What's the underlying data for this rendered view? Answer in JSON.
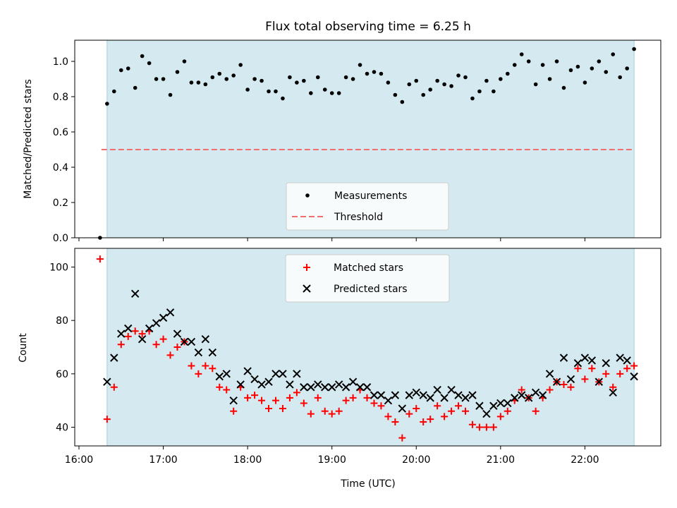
{
  "title": "Flux total observing time = 6.25 h",
  "chart_data": [
    {
      "type": "scatter",
      "ylabel": "Matched/Predicted stars",
      "xlim": [
        "15:57",
        "22:54"
      ],
      "ylim": [
        0,
        1.12
      ],
      "x_ticks": [
        "16:00",
        "17:00",
        "18:00",
        "19:00",
        "20:00",
        "21:00",
        "22:00"
      ],
      "y_ticks": [
        "0.0",
        "0.2",
        "0.4",
        "0.6",
        "0.8",
        "1.0"
      ],
      "observing_window": [
        "16:20",
        "22:35"
      ],
      "threshold": 0.5,
      "legend": {
        "position": "lower center",
        "entries": [
          "Measurements",
          "Threshold"
        ]
      },
      "series": [
        {
          "name": "Measurements",
          "x": [
            "16:15",
            "16:20",
            "16:25",
            "16:30",
            "16:35",
            "16:40",
            "16:45",
            "16:50",
            "16:55",
            "17:00",
            "17:05",
            "17:10",
            "17:15",
            "17:20",
            "17:25",
            "17:30",
            "17:35",
            "17:40",
            "17:45",
            "17:50",
            "17:55",
            "18:00",
            "18:05",
            "18:10",
            "18:15",
            "18:20",
            "18:25",
            "18:30",
            "18:35",
            "18:40",
            "18:45",
            "18:50",
            "18:55",
            "19:00",
            "19:05",
            "19:10",
            "19:15",
            "19:20",
            "19:25",
            "19:30",
            "19:35",
            "19:40",
            "19:45",
            "19:50",
            "19:55",
            "20:00",
            "20:05",
            "20:10",
            "20:15",
            "20:20",
            "20:25",
            "20:30",
            "20:35",
            "20:40",
            "20:45",
            "20:50",
            "20:55",
            "21:00",
            "21:05",
            "21:10",
            "21:15",
            "21:20",
            "21:25",
            "21:30",
            "21:35",
            "21:40",
            "21:45",
            "21:50",
            "21:55",
            "22:00",
            "22:05",
            "22:10",
            "22:15",
            "22:20",
            "22:25",
            "22:30",
            "22:35"
          ],
          "values": [
            0.0,
            0.76,
            0.83,
            0.95,
            0.96,
            0.85,
            1.03,
            0.99,
            0.9,
            0.9,
            0.81,
            0.94,
            1.0,
            0.88,
            0.88,
            0.87,
            0.91,
            0.93,
            0.9,
            0.92,
            0.98,
            0.84,
            0.9,
            0.89,
            0.83,
            0.83,
            0.79,
            0.91,
            0.88,
            0.89,
            0.82,
            0.91,
            0.84,
            0.82,
            0.82,
            0.91,
            0.9,
            0.98,
            0.93,
            0.94,
            0.93,
            0.88,
            0.81,
            0.77,
            0.87,
            0.89,
            0.81,
            0.84,
            0.89,
            0.87,
            0.86,
            0.92,
            0.91,
            0.79,
            0.83,
            0.89,
            0.83,
            0.9,
            0.93,
            0.98,
            1.04,
            1.0,
            0.87,
            0.98,
            0.9,
            1.0,
            0.85,
            0.95,
            0.97,
            0.88,
            0.96,
            1.0,
            0.94,
            1.04,
            0.91,
            0.96,
            1.07
          ],
          "color": "#000000"
        }
      ],
      "threshold_color": "#f07070",
      "band_color": "#d4eaf0"
    },
    {
      "type": "scatter",
      "xlabel": "Time (UTC)",
      "ylabel": "Count",
      "xlim": [
        "15:57",
        "22:54"
      ],
      "ylim": [
        33,
        107
      ],
      "x_ticks": [
        "16:00",
        "17:00",
        "18:00",
        "19:00",
        "20:00",
        "21:00",
        "22:00"
      ],
      "y_ticks": [
        "40",
        "60",
        "80",
        "100"
      ],
      "observing_window": [
        "16:20",
        "22:35"
      ],
      "legend": {
        "position": "upper center",
        "entries": [
          "Matched stars",
          "Predicted stars"
        ]
      },
      "x": [
        "16:15",
        "16:20",
        "16:25",
        "16:30",
        "16:35",
        "16:40",
        "16:45",
        "16:50",
        "16:55",
        "17:00",
        "17:05",
        "17:10",
        "17:15",
        "17:20",
        "17:25",
        "17:30",
        "17:35",
        "17:40",
        "17:45",
        "17:50",
        "17:55",
        "18:00",
        "18:05",
        "18:10",
        "18:15",
        "18:20",
        "18:25",
        "18:30",
        "18:35",
        "18:40",
        "18:45",
        "18:50",
        "18:55",
        "19:00",
        "19:05",
        "19:10",
        "19:15",
        "19:20",
        "19:25",
        "19:30",
        "19:35",
        "19:40",
        "19:45",
        "19:50",
        "19:55",
        "20:00",
        "20:05",
        "20:10",
        "20:15",
        "20:20",
        "20:25",
        "20:30",
        "20:35",
        "20:40",
        "20:45",
        "20:50",
        "20:55",
        "21:00",
        "21:05",
        "21:10",
        "21:15",
        "21:20",
        "21:25",
        "21:30",
        "21:35",
        "21:40",
        "21:45",
        "21:50",
        "21:55",
        "22:00",
        "22:05",
        "22:10",
        "22:15",
        "22:20",
        "22:25",
        "22:30",
        "22:35"
      ],
      "series": [
        {
          "name": "Matched stars",
          "marker": "plus",
          "color": "#ff0000",
          "values": [
            103,
            43,
            55,
            71,
            74,
            76,
            75,
            76,
            71,
            73,
            67,
            70,
            72,
            63,
            60,
            63,
            62,
            55,
            54,
            46,
            55,
            51,
            52,
            50,
            47,
            50,
            47,
            51,
            53,
            49,
            45,
            51,
            46,
            45,
            46,
            50,
            51,
            54,
            51,
            49,
            48,
            44,
            42,
            36,
            45,
            47,
            42,
            43,
            48,
            44,
            46,
            48,
            46,
            41,
            40,
            40,
            40,
            44,
            46,
            50,
            54,
            51,
            46,
            51,
            54,
            57,
            56,
            55,
            62,
            58,
            62,
            57,
            60,
            55,
            60,
            62,
            63
          ]
        },
        {
          "name": "Predicted stars",
          "marker": "x",
          "color": "#000000",
          "values": [
            null,
            57,
            66,
            75,
            77,
            90,
            73,
            77,
            79,
            81,
            83,
            75,
            72,
            72,
            68,
            73,
            68,
            59,
            60,
            50,
            56,
            61,
            58,
            56,
            57,
            60,
            60,
            56,
            60,
            55,
            55,
            56,
            55,
            55,
            56,
            55,
            57,
            55,
            55,
            52,
            52,
            50,
            52,
            47,
            52,
            53,
            52,
            51,
            54,
            51,
            54,
            52,
            51,
            52,
            48,
            45,
            48,
            49,
            49,
            51,
            52,
            51,
            53,
            52,
            60,
            57,
            66,
            58,
            64,
            66,
            65,
            57,
            64,
            53,
            66,
            65,
            59
          ]
        }
      ],
      "band_color": "#d4eaf0"
    }
  ]
}
